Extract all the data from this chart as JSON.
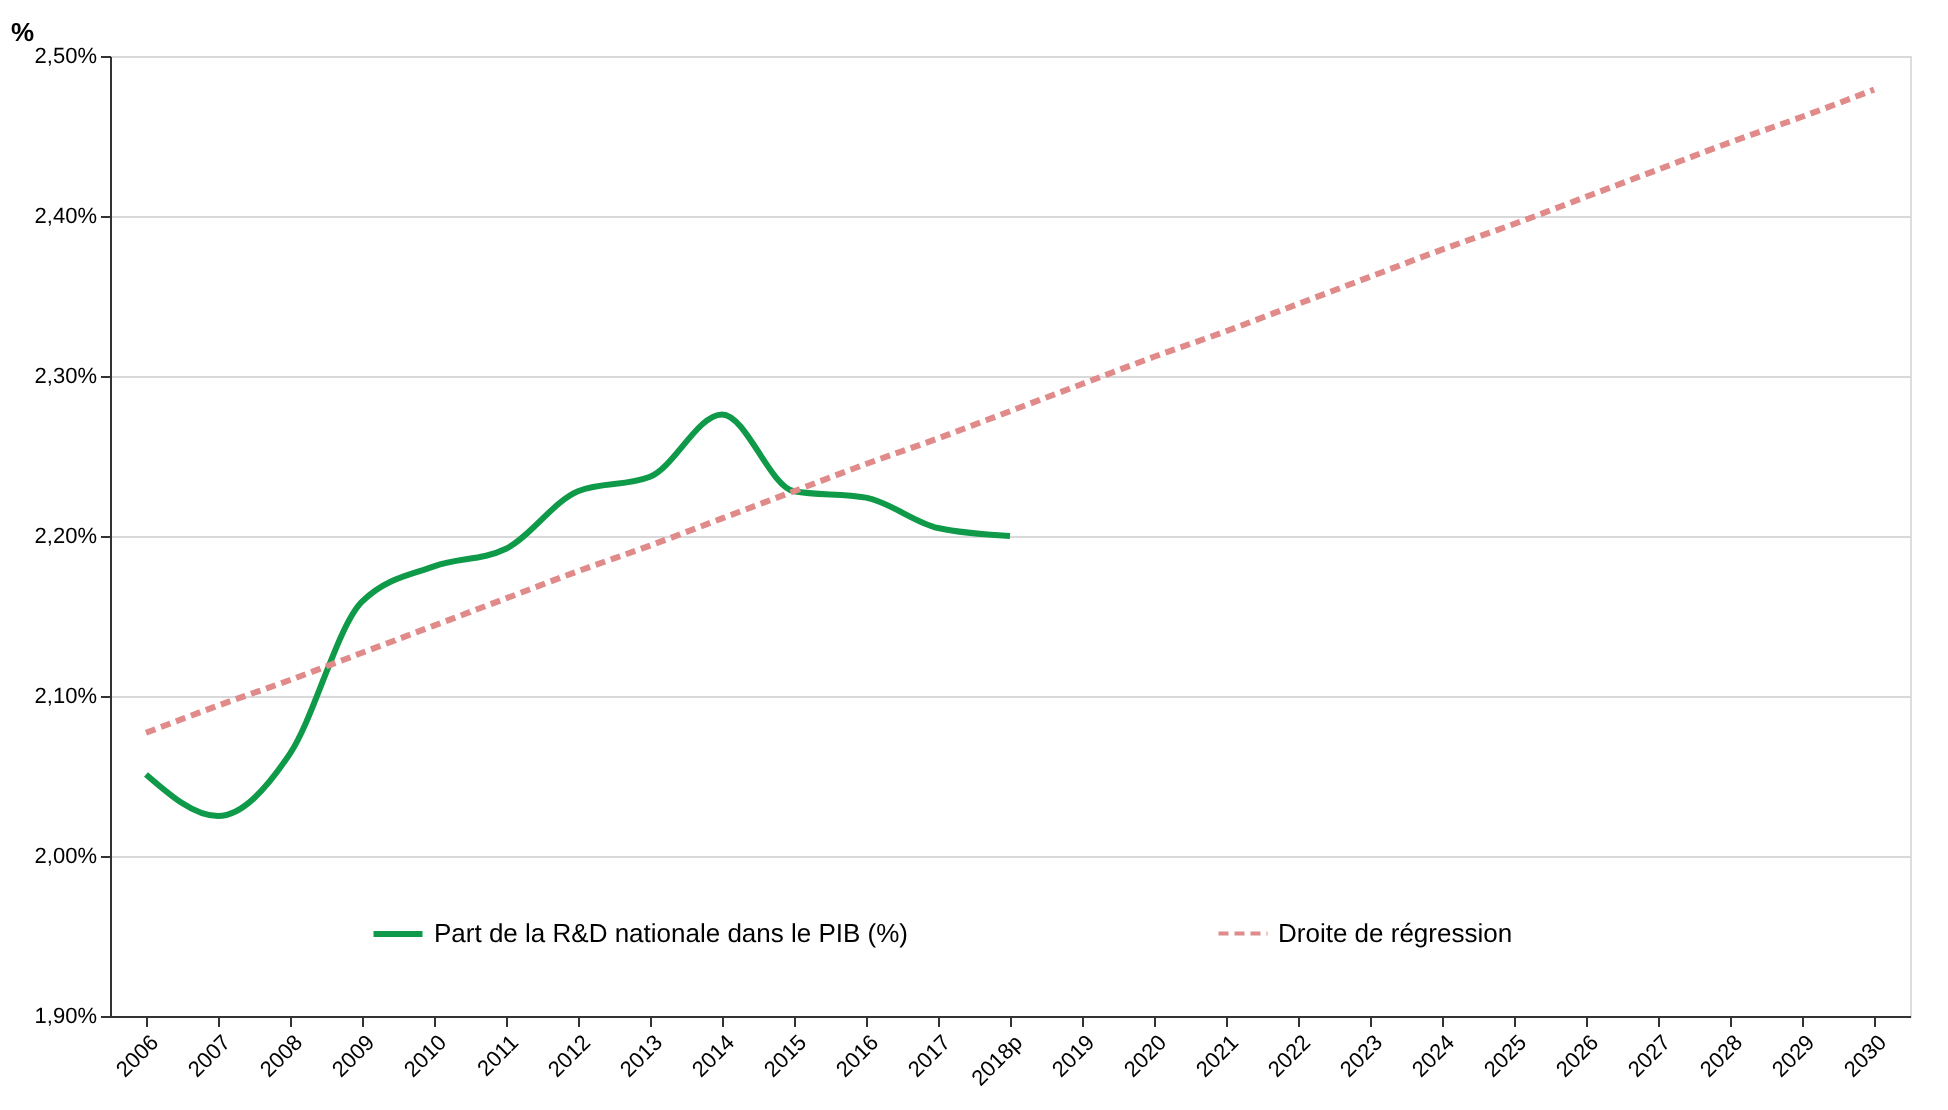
{
  "chart_data": {
    "type": "line",
    "ylabel": "%",
    "categories": [
      "2006",
      "2007",
      "2008",
      "2009",
      "2010",
      "2011",
      "2012",
      "2013",
      "2014",
      "2015",
      "2016",
      "2017",
      "2018p",
      "2019",
      "2020",
      "2021",
      "2022",
      "2023",
      "2024",
      "2025",
      "2026",
      "2027",
      "2028",
      "2029",
      "2030"
    ],
    "series": [
      {
        "name": "Part de la R&D nationale dans le PIB (%)",
        "color": "#0e9a48",
        "line_style": "solid",
        "values": [
          2.051,
          2.025,
          2.064,
          2.159,
          2.181,
          2.192,
          2.228,
          2.237,
          2.276,
          2.228,
          2.224,
          2.205,
          2.2,
          null,
          null,
          null,
          null,
          null,
          null,
          null,
          null,
          null,
          null,
          null,
          null
        ]
      },
      {
        "name": "Droite de régression",
        "color": "#e08a8a",
        "line_style": "dashed",
        "values": [
          2.077,
          2.094,
          2.11,
          2.127,
          2.144,
          2.161,
          2.178,
          2.194,
          2.211,
          2.228,
          2.245,
          2.261,
          2.278,
          2.295,
          2.312,
          2.328,
          2.345,
          2.362,
          2.379,
          2.395,
          2.412,
          2.429,
          2.446,
          2.462,
          2.479
        ]
      }
    ],
    "ylim": [
      1.9,
      2.5
    ],
    "yticks": [
      {
        "value": 1.9,
        "label": "1,90%"
      },
      {
        "value": 2.0,
        "label": "2,00%"
      },
      {
        "value": 2.1,
        "label": "2,10%"
      },
      {
        "value": 2.2,
        "label": "2,20%"
      },
      {
        "value": 2.3,
        "label": "2,30%"
      },
      {
        "value": 2.4,
        "label": "2,40%"
      },
      {
        "value": 2.5,
        "label": "2,50%"
      }
    ],
    "grid": "y",
    "legend": "bottom",
    "marker": "none"
  }
}
